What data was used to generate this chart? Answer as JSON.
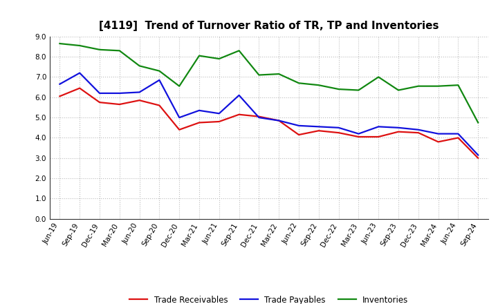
{
  "title": "[4119]  Trend of Turnover Ratio of TR, TP and Inventories",
  "x_labels": [
    "Jun-19",
    "Sep-19",
    "Dec-19",
    "Mar-20",
    "Jun-20",
    "Sep-20",
    "Dec-20",
    "Mar-21",
    "Jun-21",
    "Sep-21",
    "Dec-21",
    "Mar-22",
    "Jun-22",
    "Sep-22",
    "Dec-22",
    "Mar-23",
    "Jun-23",
    "Sep-23",
    "Dec-23",
    "Mar-24",
    "Jun-24",
    "Sep-24"
  ],
  "trade_receivables": [
    6.05,
    6.45,
    5.75,
    5.65,
    5.85,
    5.6,
    4.4,
    4.75,
    4.8,
    5.15,
    5.05,
    4.85,
    4.15,
    4.35,
    4.25,
    4.05,
    4.05,
    4.3,
    4.25,
    3.8,
    4.0,
    3.0
  ],
  "trade_payables": [
    6.65,
    7.2,
    6.2,
    6.2,
    6.25,
    6.85,
    5.0,
    5.35,
    5.2,
    6.1,
    5.0,
    4.85,
    4.6,
    4.55,
    4.5,
    4.2,
    4.55,
    4.5,
    4.4,
    4.2,
    4.2,
    3.15
  ],
  "inventories": [
    8.65,
    8.55,
    8.35,
    8.3,
    7.55,
    7.3,
    6.55,
    8.05,
    7.9,
    8.3,
    7.1,
    7.15,
    6.7,
    6.6,
    6.4,
    6.35,
    7.0,
    6.35,
    6.55,
    6.55,
    6.6,
    4.75
  ],
  "ylim": [
    0.0,
    9.0
  ],
  "yticks": [
    0.0,
    1.0,
    2.0,
    3.0,
    4.0,
    5.0,
    6.0,
    7.0,
    8.0,
    9.0
  ],
  "color_tr": "#dd1111",
  "color_tp": "#1111dd",
  "color_inv": "#118811",
  "legend_labels": [
    "Trade Receivables",
    "Trade Payables",
    "Inventories"
  ],
  "bg_color": "#ffffff",
  "grid_color": "#bbbbbb",
  "line_width": 1.6,
  "title_fontsize": 11,
  "tick_fontsize": 7.5,
  "legend_fontsize": 8.5
}
